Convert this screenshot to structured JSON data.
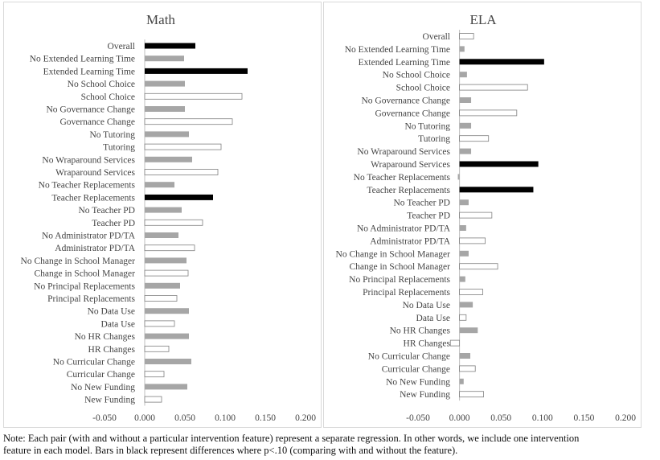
{
  "chart_data": [
    {
      "type": "bar",
      "orientation": "horizontal",
      "title": "Math",
      "categories": [
        "Overall",
        "No Extended Learning Time",
        "Extended Learning Time",
        "No School Choice",
        "School Choice",
        "No Governance Change",
        "Governance Change",
        "No Tutoring",
        "Tutoring",
        "No Wraparound Services",
        "Wraparound Services",
        "No Teacher Replacements",
        "Teacher Replacements",
        "No Teacher PD",
        "Teacher PD",
        "No Administrator PD/TA",
        "Administrator PD/TA",
        "No Change in School Manager",
        "Change in School Manager",
        "No Principal Replacements",
        "Principal Replacements",
        "No Data Use",
        "Data Use",
        "No HR Changes",
        "HR Changes",
        "No Curricular Change",
        "Curricular Change",
        "No New Funding",
        "New Funding"
      ],
      "values": [
        0.063,
        0.049,
        0.128,
        0.05,
        0.121,
        0.05,
        0.109,
        0.055,
        0.095,
        0.059,
        0.091,
        0.037,
        0.085,
        0.046,
        0.072,
        0.042,
        0.062,
        0.052,
        0.054,
        0.044,
        0.04,
        0.055,
        0.037,
        0.055,
        0.03,
        0.058,
        0.024,
        0.053,
        0.021
      ],
      "styles": [
        "black",
        "gray",
        "black",
        "gray",
        "white",
        "gray",
        "white",
        "gray",
        "white",
        "gray",
        "white",
        "gray",
        "black",
        "gray",
        "white",
        "gray",
        "white",
        "gray",
        "white",
        "gray",
        "white",
        "gray",
        "white",
        "gray",
        "white",
        "gray",
        "white",
        "gray",
        "white"
      ],
      "xlim": [
        -0.05,
        0.2
      ],
      "xticks": [
        "-0.050",
        "0.000",
        "0.050",
        "0.100",
        "0.150",
        "0.200"
      ],
      "grid": false,
      "legend": "none"
    },
    {
      "type": "bar",
      "orientation": "horizontal",
      "title": "ELA",
      "categories": [
        "Overall",
        "No Extended Learning Time",
        "Extended Learning Time",
        "No School Choice",
        "School Choice",
        "No Governance Change",
        "Governance Change",
        "No Tutoring",
        "Tutoring",
        "No Wraparound Services",
        "Wraparound Services",
        "No Teacher Replacements",
        "Teacher Replacements",
        "No Teacher PD",
        "Teacher PD",
        "No Administrator PD/TA",
        "Administrator PD/TA",
        "No Change in School Manager",
        "Change in School Manager",
        "No Principal Replacements",
        "Principal Replacements",
        "No Data Use",
        "Data Use",
        "No HR Changes",
        "HR Changes",
        "No Curricular Change",
        "Curricular Change",
        "No New Funding",
        "New Funding"
      ],
      "values": [
        0.017,
        0.006,
        0.102,
        0.009,
        0.082,
        0.014,
        0.069,
        0.014,
        0.035,
        0.014,
        0.095,
        -0.002,
        0.089,
        0.011,
        0.039,
        0.008,
        0.031,
        0.011,
        0.046,
        0.007,
        0.028,
        0.016,
        0.008,
        0.022,
        -0.011,
        0.013,
        0.019,
        0.005,
        0.029
      ],
      "styles": [
        "white",
        "gray",
        "black",
        "gray",
        "white",
        "gray",
        "white",
        "gray",
        "white",
        "gray",
        "black",
        "gray",
        "black",
        "gray",
        "white",
        "gray",
        "white",
        "gray",
        "white",
        "gray",
        "white",
        "gray",
        "white",
        "gray",
        "white",
        "gray",
        "white",
        "gray",
        "white"
      ],
      "xlim": [
        -0.05,
        0.2
      ],
      "xticks": [
        "-0.050",
        "0.000",
        "0.050",
        "0.100",
        "0.150",
        "0.200"
      ],
      "grid": false,
      "legend": "none"
    }
  ],
  "colors": {
    "black": "#000000",
    "gray": "#a6a6a6",
    "white_fill": "#ffffff",
    "white_stroke": "#7f7f7f",
    "axis": "#bfbfbf",
    "text": "#444444"
  },
  "note": {
    "line1": "Note: Each pair (with and without a particular intervention feature) represent a separate regression. In other words, we include one intervention",
    "line2": "feature in each model. Bars in black represent differences where p<.10 (comparing with and without the feature)."
  }
}
